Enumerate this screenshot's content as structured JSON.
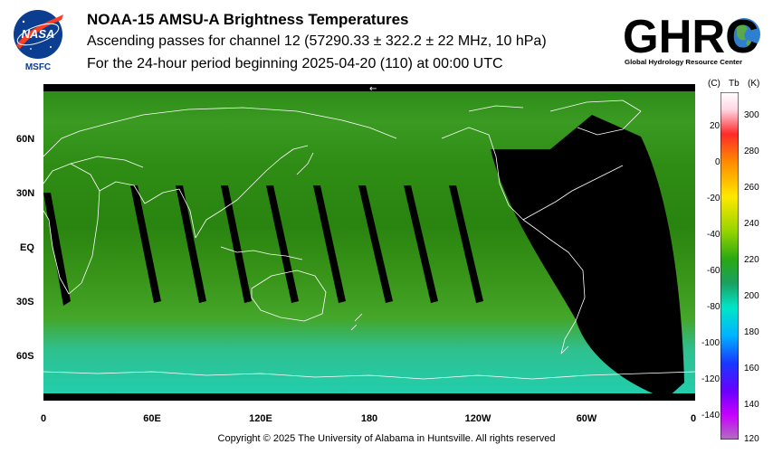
{
  "header": {
    "title": "NOAA-15 AMSU-A Brightness Temperatures",
    "subtitle": "Ascending passes for channel 12 (57290.33 ± 322.2 ± 22 MHz, 10 hPa)",
    "period": "For the 24-hour period beginning 2025-04-20 (110) at 00:00 UTC"
  },
  "logos": {
    "nasa": {
      "wordmark": "NASA",
      "caption": "MSFC"
    },
    "ghrc": {
      "wordmark": "GHRC",
      "caption": "Global Hydrology Resource Center"
    }
  },
  "map": {
    "projection": "equirectangular",
    "field_colors": {
      "cold_tropics": "#2e8a10",
      "mid": "#3b9a18",
      "warm_south": "#22c8a8",
      "no_data": "#000000",
      "coast": "#ffffff"
    },
    "lat_labels": [
      "60N",
      "30N",
      "EQ",
      "30S",
      "60S"
    ],
    "lon_labels": [
      "0",
      "60E",
      "120E",
      "180",
      "120W",
      "60W",
      "0"
    ],
    "arrow_glyph": "←"
  },
  "colorbar": {
    "celsius_header": "(C)",
    "tb_header": "Tb",
    "kelvin_header": "(K)",
    "celsius_ticks": [
      "20",
      "0",
      "-20",
      "-40",
      "-60",
      "-80",
      "-100",
      "-120",
      "-140"
    ],
    "kelvin_ticks": [
      "300",
      "280",
      "260",
      "240",
      "220",
      "200",
      "180",
      "160",
      "140",
      "120"
    ]
  },
  "footer": {
    "copyright": "Copyright © 2025 The University of Alabama in Huntsville.  All rights reserved"
  }
}
